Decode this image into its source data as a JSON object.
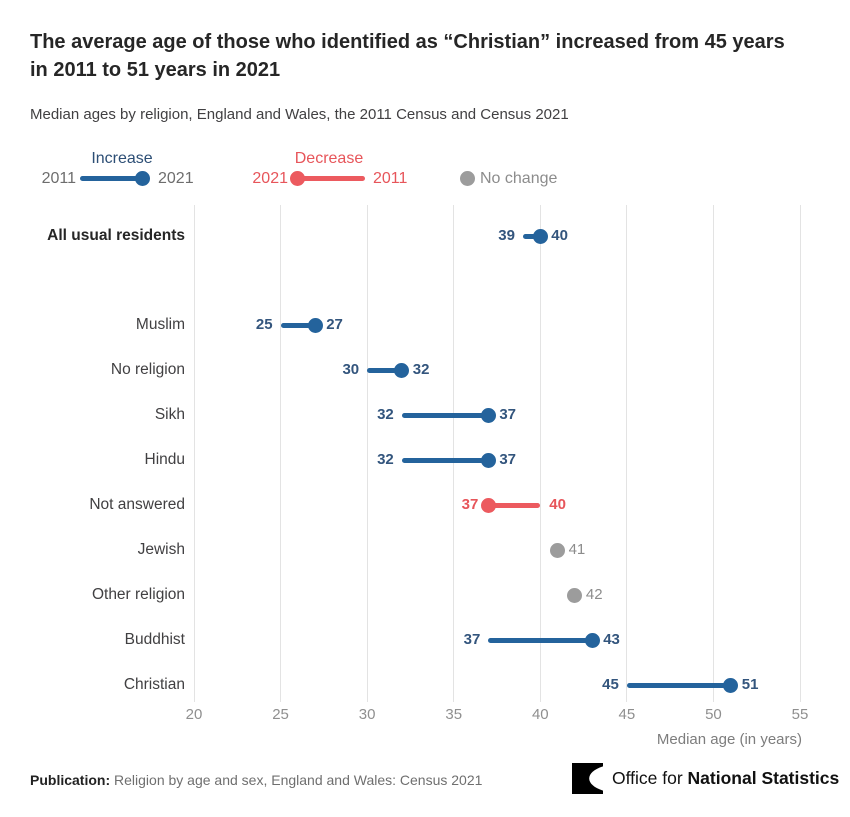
{
  "header": {
    "title_line1": "The average age of those who identified as “Christian” increased from 45 years",
    "title_line2": "in 2011 to 51 years in 2021",
    "subtitle": "Median ages by religion, England and Wales, the 2011 Census and Census 2021"
  },
  "legend": {
    "increase": {
      "label": "Increase",
      "start": "2011",
      "end": "2021"
    },
    "decrease": {
      "label": "Decrease",
      "start": "2021",
      "end": "2011"
    },
    "no_change": {
      "label": "No change"
    }
  },
  "chart_data": {
    "type": "dumbbell",
    "title": "The average age of those who identified as “Christian” increased from 45 years in 2011 to 51 years in 2021",
    "subtitle": "Median ages by religion, England and Wales, the 2011 Census and Census 2021",
    "xlabel": "Median age (in years)",
    "axis": {
      "min": 20,
      "max": 55,
      "ticks": [
        20,
        25,
        30,
        35,
        40,
        45,
        50,
        55
      ]
    },
    "series_years": [
      "2011",
      "2021"
    ],
    "rows": [
      {
        "label": "All usual residents",
        "change": "increase",
        "y2011": 39,
        "y2021": 40,
        "bold": true
      },
      {
        "label": "Muslim",
        "change": "increase",
        "y2011": 25,
        "y2021": 27
      },
      {
        "label": "No religion",
        "change": "increase",
        "y2011": 30,
        "y2021": 32
      },
      {
        "label": "Sikh",
        "change": "increase",
        "y2011": 32,
        "y2021": 37
      },
      {
        "label": "Hindu",
        "change": "increase",
        "y2011": 32,
        "y2021": 37
      },
      {
        "label": "Not answered",
        "change": "decrease",
        "y2011": 40,
        "y2021": 37
      },
      {
        "label": "Jewish",
        "change": "no_change",
        "y2011": 41,
        "y2021": 41
      },
      {
        "label": "Other religion",
        "change": "no_change",
        "y2011": 42,
        "y2021": 42
      },
      {
        "label": "Buddhist",
        "change": "increase",
        "y2011": 37,
        "y2021": 43
      },
      {
        "label": "Christian",
        "change": "increase",
        "y2011": 45,
        "y2021": 51
      }
    ]
  },
  "colors": {
    "increase_line": "#24639c",
    "increase_text": "#33557d",
    "decrease_line": "#ec5a5f",
    "decrease_text": "#e7555a",
    "no_change_dot": "#9c9c9c",
    "no_change_text": "#8c8c8c",
    "gridline": "#e3e3e3"
  },
  "footer": {
    "publication_label": "Publication:",
    "publication_text": " Religion by age and sex, England and Wales: Census 2021",
    "logo_regular": "Office for ",
    "logo_bold": "National Statistics"
  }
}
